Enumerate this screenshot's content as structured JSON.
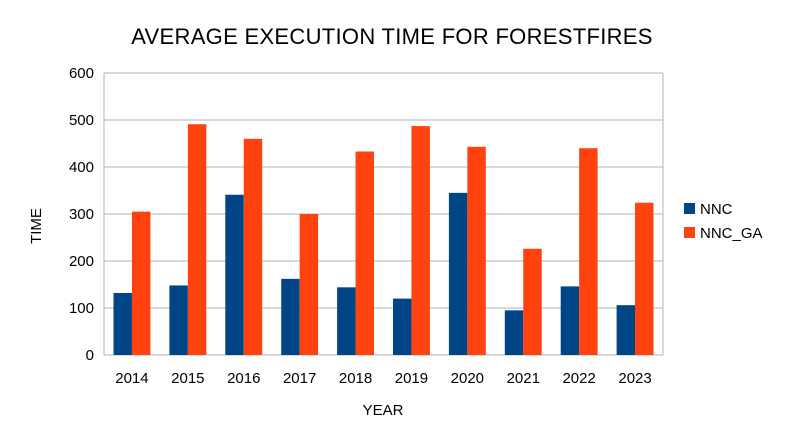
{
  "chart_data": {
    "type": "bar",
    "title": "AVERAGE EXECUTION TIME FOR FORESTFIRES",
    "xlabel": "YEAR",
    "ylabel": "TIME",
    "categories": [
      "2014",
      "2015",
      "2016",
      "2017",
      "2018",
      "2019",
      "2020",
      "2021",
      "2022",
      "2023"
    ],
    "series": [
      {
        "name": "NNC",
        "color": "#004586",
        "values": [
          132,
          148,
          341,
          162,
          144,
          120,
          345,
          95,
          146,
          106
        ]
      },
      {
        "name": "NNC_GA",
        "color": "#ff420e",
        "values": [
          305,
          491,
          460,
          300,
          433,
          487,
          443,
          226,
          440,
          324
        ]
      }
    ],
    "ylim": [
      0,
      600
    ],
    "yticks": [
      0,
      100,
      200,
      300,
      400,
      500,
      600
    ],
    "grid": true,
    "legend": "right"
  }
}
